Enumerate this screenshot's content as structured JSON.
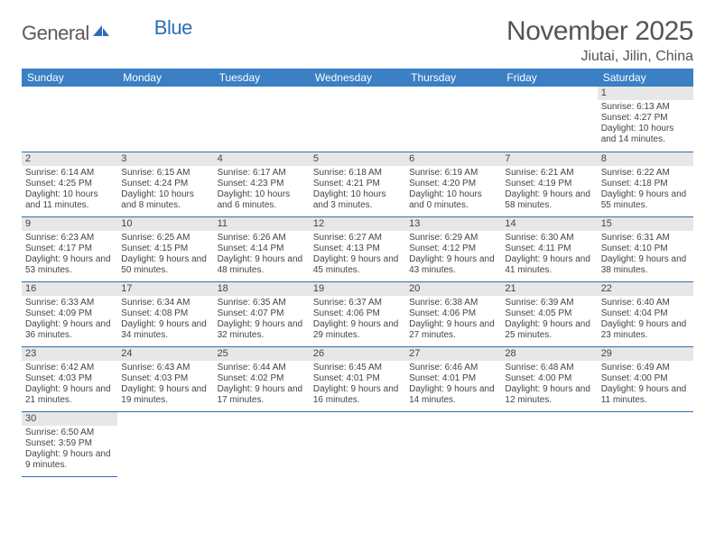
{
  "logo": {
    "part1": "General",
    "part2": "Blue"
  },
  "title": {
    "month": "November 2025",
    "location": "Jiutai, Jilin, China"
  },
  "colors": {
    "header_bg": "#3b7fc4",
    "header_text": "#ffffff",
    "row_border": "#2a6fb5",
    "daynum_bg": "#e7e7e7",
    "text": "#444444",
    "logo_gray": "#5a5a5a",
    "logo_blue": "#2a6fb5"
  },
  "dayNames": [
    "Sunday",
    "Monday",
    "Tuesday",
    "Wednesday",
    "Thursday",
    "Friday",
    "Saturday"
  ],
  "weeks": [
    [
      null,
      null,
      null,
      null,
      null,
      null,
      {
        "n": "1",
        "sr": "Sunrise: 6:13 AM",
        "ss": "Sunset: 4:27 PM",
        "dl": "Daylight: 10 hours and 14 minutes."
      }
    ],
    [
      {
        "n": "2",
        "sr": "Sunrise: 6:14 AM",
        "ss": "Sunset: 4:25 PM",
        "dl": "Daylight: 10 hours and 11 minutes."
      },
      {
        "n": "3",
        "sr": "Sunrise: 6:15 AM",
        "ss": "Sunset: 4:24 PM",
        "dl": "Daylight: 10 hours and 8 minutes."
      },
      {
        "n": "4",
        "sr": "Sunrise: 6:17 AM",
        "ss": "Sunset: 4:23 PM",
        "dl": "Daylight: 10 hours and 6 minutes."
      },
      {
        "n": "5",
        "sr": "Sunrise: 6:18 AM",
        "ss": "Sunset: 4:21 PM",
        "dl": "Daylight: 10 hours and 3 minutes."
      },
      {
        "n": "6",
        "sr": "Sunrise: 6:19 AM",
        "ss": "Sunset: 4:20 PM",
        "dl": "Daylight: 10 hours and 0 minutes."
      },
      {
        "n": "7",
        "sr": "Sunrise: 6:21 AM",
        "ss": "Sunset: 4:19 PM",
        "dl": "Daylight: 9 hours and 58 minutes."
      },
      {
        "n": "8",
        "sr": "Sunrise: 6:22 AM",
        "ss": "Sunset: 4:18 PM",
        "dl": "Daylight: 9 hours and 55 minutes."
      }
    ],
    [
      {
        "n": "9",
        "sr": "Sunrise: 6:23 AM",
        "ss": "Sunset: 4:17 PM",
        "dl": "Daylight: 9 hours and 53 minutes."
      },
      {
        "n": "10",
        "sr": "Sunrise: 6:25 AM",
        "ss": "Sunset: 4:15 PM",
        "dl": "Daylight: 9 hours and 50 minutes."
      },
      {
        "n": "11",
        "sr": "Sunrise: 6:26 AM",
        "ss": "Sunset: 4:14 PM",
        "dl": "Daylight: 9 hours and 48 minutes."
      },
      {
        "n": "12",
        "sr": "Sunrise: 6:27 AM",
        "ss": "Sunset: 4:13 PM",
        "dl": "Daylight: 9 hours and 45 minutes."
      },
      {
        "n": "13",
        "sr": "Sunrise: 6:29 AM",
        "ss": "Sunset: 4:12 PM",
        "dl": "Daylight: 9 hours and 43 minutes."
      },
      {
        "n": "14",
        "sr": "Sunrise: 6:30 AM",
        "ss": "Sunset: 4:11 PM",
        "dl": "Daylight: 9 hours and 41 minutes."
      },
      {
        "n": "15",
        "sr": "Sunrise: 6:31 AM",
        "ss": "Sunset: 4:10 PM",
        "dl": "Daylight: 9 hours and 38 minutes."
      }
    ],
    [
      {
        "n": "16",
        "sr": "Sunrise: 6:33 AM",
        "ss": "Sunset: 4:09 PM",
        "dl": "Daylight: 9 hours and 36 minutes."
      },
      {
        "n": "17",
        "sr": "Sunrise: 6:34 AM",
        "ss": "Sunset: 4:08 PM",
        "dl": "Daylight: 9 hours and 34 minutes."
      },
      {
        "n": "18",
        "sr": "Sunrise: 6:35 AM",
        "ss": "Sunset: 4:07 PM",
        "dl": "Daylight: 9 hours and 32 minutes."
      },
      {
        "n": "19",
        "sr": "Sunrise: 6:37 AM",
        "ss": "Sunset: 4:06 PM",
        "dl": "Daylight: 9 hours and 29 minutes."
      },
      {
        "n": "20",
        "sr": "Sunrise: 6:38 AM",
        "ss": "Sunset: 4:06 PM",
        "dl": "Daylight: 9 hours and 27 minutes."
      },
      {
        "n": "21",
        "sr": "Sunrise: 6:39 AM",
        "ss": "Sunset: 4:05 PM",
        "dl": "Daylight: 9 hours and 25 minutes."
      },
      {
        "n": "22",
        "sr": "Sunrise: 6:40 AM",
        "ss": "Sunset: 4:04 PM",
        "dl": "Daylight: 9 hours and 23 minutes."
      }
    ],
    [
      {
        "n": "23",
        "sr": "Sunrise: 6:42 AM",
        "ss": "Sunset: 4:03 PM",
        "dl": "Daylight: 9 hours and 21 minutes."
      },
      {
        "n": "24",
        "sr": "Sunrise: 6:43 AM",
        "ss": "Sunset: 4:03 PM",
        "dl": "Daylight: 9 hours and 19 minutes."
      },
      {
        "n": "25",
        "sr": "Sunrise: 6:44 AM",
        "ss": "Sunset: 4:02 PM",
        "dl": "Daylight: 9 hours and 17 minutes."
      },
      {
        "n": "26",
        "sr": "Sunrise: 6:45 AM",
        "ss": "Sunset: 4:01 PM",
        "dl": "Daylight: 9 hours and 16 minutes."
      },
      {
        "n": "27",
        "sr": "Sunrise: 6:46 AM",
        "ss": "Sunset: 4:01 PM",
        "dl": "Daylight: 9 hours and 14 minutes."
      },
      {
        "n": "28",
        "sr": "Sunrise: 6:48 AM",
        "ss": "Sunset: 4:00 PM",
        "dl": "Daylight: 9 hours and 12 minutes."
      },
      {
        "n": "29",
        "sr": "Sunrise: 6:49 AM",
        "ss": "Sunset: 4:00 PM",
        "dl": "Daylight: 9 hours and 11 minutes."
      }
    ],
    [
      {
        "n": "30",
        "sr": "Sunrise: 6:50 AM",
        "ss": "Sunset: 3:59 PM",
        "dl": "Daylight: 9 hours and 9 minutes."
      },
      null,
      null,
      null,
      null,
      null,
      null
    ]
  ]
}
